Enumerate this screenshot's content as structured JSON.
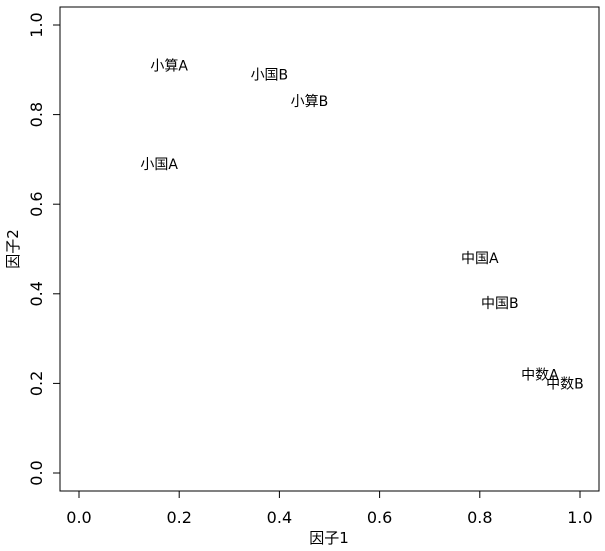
{
  "chart_data": {
    "type": "scatter",
    "title": "",
    "xlabel": "因子1",
    "ylabel": "因子2",
    "xlim": [
      0.0,
      1.0
    ],
    "ylim": [
      0.0,
      1.0
    ],
    "x_ticks": [
      "0.0",
      "0.2",
      "0.4",
      "0.6",
      "0.8",
      "1.0"
    ],
    "y_ticks": [
      "0.0",
      "0.2",
      "0.4",
      "0.6",
      "0.8",
      "1.0"
    ],
    "grid": false,
    "legend": "none",
    "marker": "text-labels",
    "points": [
      {
        "label": "小算A",
        "x": 0.18,
        "y": 0.91
      },
      {
        "label": "小国B",
        "x": 0.38,
        "y": 0.89
      },
      {
        "label": "小算B",
        "x": 0.46,
        "y": 0.83
      },
      {
        "label": "小国A",
        "x": 0.16,
        "y": 0.69
      },
      {
        "label": "中国A",
        "x": 0.8,
        "y": 0.48
      },
      {
        "label": "中国B",
        "x": 0.84,
        "y": 0.38
      },
      {
        "label": "中数A",
        "x": 0.92,
        "y": 0.22
      },
      {
        "label": "中数B",
        "x": 0.97,
        "y": 0.2
      }
    ]
  }
}
